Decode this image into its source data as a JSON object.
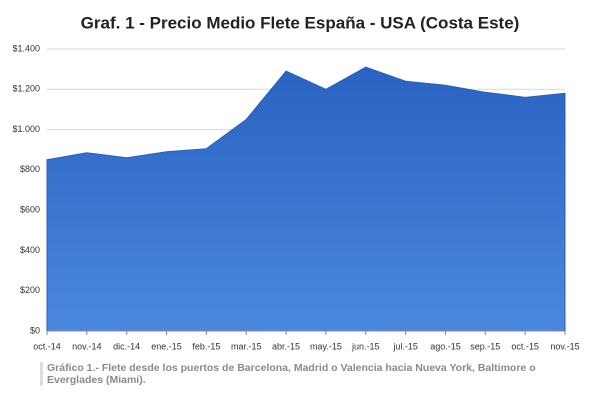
{
  "chart_data": {
    "type": "area",
    "title": "Graf. 1 - Precio Medio Flete España - USA (Costa Este)",
    "caption": "Gráfico 1.- Flete desde los puertos de Barcelona, Madrid o Valencia hacia Nueva York, Baltimore o Everglades (Miami).",
    "categories": [
      "oct.-14",
      "nov.-14",
      "dic.-14",
      "ene.-15",
      "feb.-15",
      "mar.-15",
      "abr.-15",
      "may.-15",
      "jun.-15",
      "jul.-15",
      "ago.-15",
      "sep.-15",
      "oct.-15",
      "nov.-15"
    ],
    "values": [
      850,
      885,
      860,
      890,
      905,
      1050,
      1290,
      1200,
      1310,
      1240,
      1220,
      1185,
      1160,
      1180
    ],
    "color": "#3572d0",
    "ylim": [
      0,
      1400
    ],
    "yticks": [
      {
        "value": 0,
        "label": "$0"
      },
      {
        "value": 200,
        "label": "$200"
      },
      {
        "value": 400,
        "label": "$400"
      },
      {
        "value": 600,
        "label": "$600"
      },
      {
        "value": 800,
        "label": "$800"
      },
      {
        "value": 1000,
        "label": "$1.000"
      },
      {
        "value": 1200,
        "label": "$1.200"
      },
      {
        "value": 1400,
        "label": "$1.400"
      }
    ],
    "grid": true
  }
}
